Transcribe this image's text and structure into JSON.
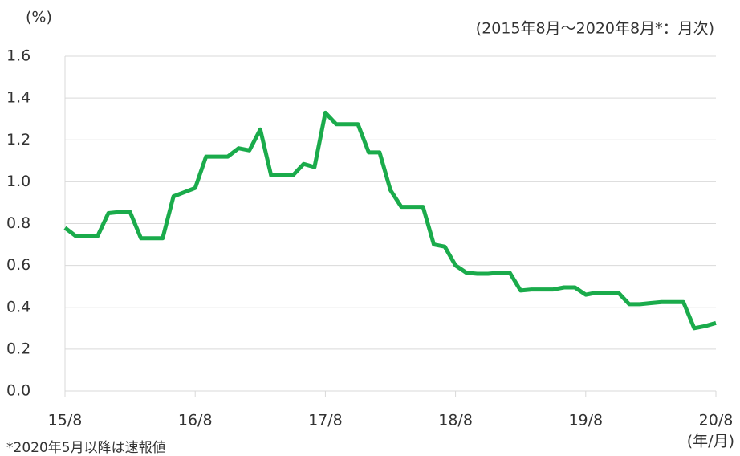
{
  "chart_data": {
    "type": "line",
    "y_unit": "(%)",
    "subtitle": "(2015年8月～2020年8月*：月次)",
    "note": "*2020年5月以降は速報値",
    "x_unit": "(年/月)",
    "categories": [
      "15/8",
      null,
      null,
      null,
      null,
      null,
      null,
      null,
      null,
      null,
      null,
      null,
      "16/8",
      null,
      null,
      null,
      null,
      null,
      null,
      null,
      null,
      null,
      null,
      null,
      "17/8",
      null,
      null,
      null,
      null,
      null,
      null,
      null,
      null,
      null,
      null,
      null,
      "18/8",
      null,
      null,
      null,
      null,
      null,
      null,
      null,
      null,
      null,
      null,
      null,
      "19/8",
      null,
      null,
      null,
      null,
      null,
      null,
      null,
      null,
      null,
      null,
      null,
      "20/8"
    ],
    "values": [
      0.78,
      0.74,
      0.74,
      0.74,
      0.85,
      0.855,
      0.855,
      0.73,
      0.73,
      0.73,
      0.93,
      0.95,
      0.97,
      1.12,
      1.12,
      1.12,
      1.16,
      1.15,
      1.25,
      1.03,
      1.03,
      1.03,
      1.085,
      1.07,
      1.33,
      1.275,
      1.275,
      1.275,
      1.14,
      1.14,
      0.96,
      0.88,
      0.88,
      0.88,
      0.7,
      0.69,
      0.6,
      0.565,
      0.56,
      0.56,
      0.565,
      0.565,
      0.48,
      0.485,
      0.485,
      0.485,
      0.495,
      0.495,
      0.46,
      0.47,
      0.47,
      0.47,
      0.415,
      0.415,
      0.42,
      0.425,
      0.425,
      0.425,
      0.3,
      0.31,
      0.325
    ],
    "color": "#1aab4b",
    "ylim": [
      0,
      1.6
    ],
    "yticks": [
      {
        "value": 0,
        "label": "0.0"
      },
      0.2,
      0.4,
      0.6,
      0.8,
      {
        "value": 1,
        "label": "1.0"
      },
      1.2,
      1.4,
      1.6
    ],
    "grid": true
  }
}
